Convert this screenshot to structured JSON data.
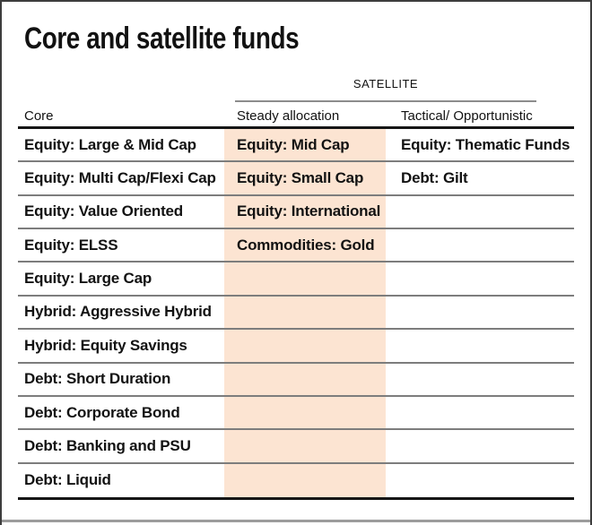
{
  "title": "Core and satellite funds",
  "chart_data": {
    "type": "table",
    "title": "Core and satellite funds",
    "group_header": {
      "label": "SATELLITE",
      "spans_columns": [
        "Steady allocation",
        "Tactical/ Opportunistic"
      ]
    },
    "columns": [
      "Core",
      "Steady allocation",
      "Tactical/ Opportunistic"
    ],
    "highlighted_column": "Steady allocation",
    "rows": [
      [
        "Equity: Large & Mid Cap",
        "Equity: Mid Cap",
        "Equity: Thematic Funds"
      ],
      [
        "Equity: Multi Cap/Flexi Cap",
        "Equity: Small Cap",
        "Debt: Gilt"
      ],
      [
        "Equity: Value Oriented",
        "Equity: International",
        ""
      ],
      [
        "Equity: ELSS",
        "Commodities: Gold",
        ""
      ],
      [
        "Equity: Large Cap",
        "",
        ""
      ],
      [
        "Hybrid: Aggressive Hybrid",
        "",
        ""
      ],
      [
        "Hybrid: Equity Savings",
        "",
        ""
      ],
      [
        "Debt: Short Duration",
        "",
        ""
      ],
      [
        "Debt: Corporate Bond",
        "",
        ""
      ],
      [
        "Debt: Banking and PSU",
        "",
        ""
      ],
      [
        "Debt: Liquid",
        "",
        ""
      ]
    ]
  },
  "colors": {
    "highlight_column": "#fce4d2",
    "rule_gray": "#7d7d7d",
    "rule_light": "#8c8c8c",
    "rule_black": "#161616",
    "text": "#121212",
    "border_dark": "#3d3d3d",
    "bottom_bar": "#9c9c9c"
  }
}
